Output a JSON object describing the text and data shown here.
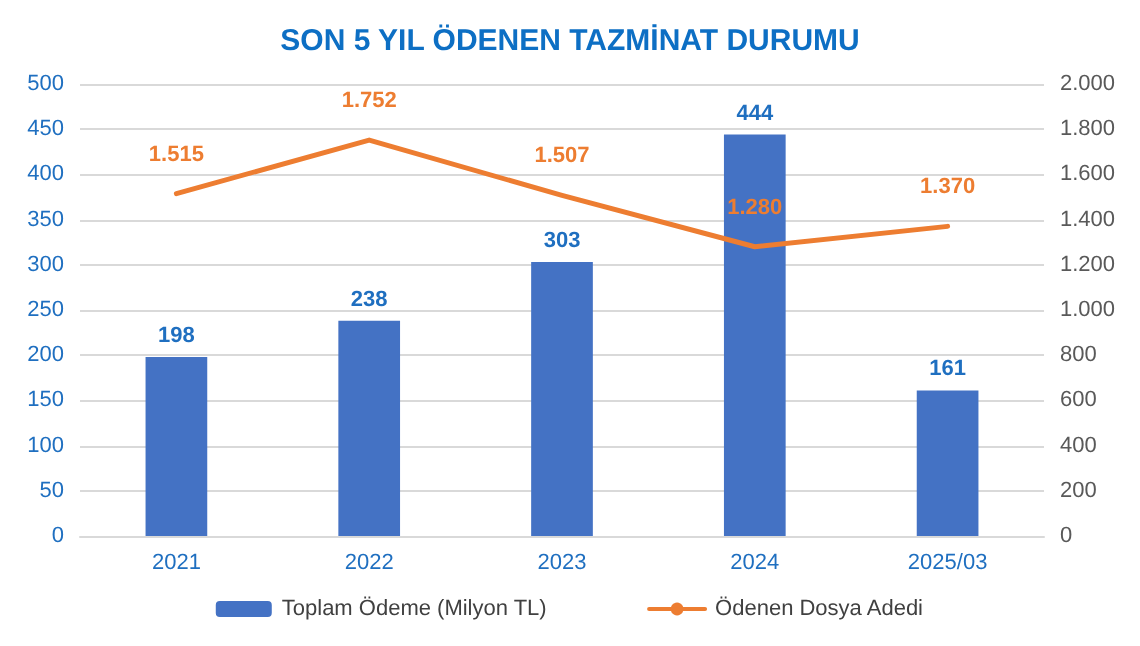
{
  "chart_data": {
    "type": "bar",
    "title": "SON 5 YIL ÖDENEN TAZMİNAT DURUMU",
    "categories": [
      "2021",
      "2022",
      "2023",
      "2024",
      "2025/03"
    ],
    "series": [
      {
        "name": "Toplam Ödeme (Milyon TL)",
        "color": "#4472c4",
        "values": [
          198,
          238,
          303,
          444,
          161
        ],
        "value_labels": [
          "198",
          "238",
          "303",
          "444",
          "161"
        ]
      },
      {
        "name": "Ödenen Dosya Adedi",
        "type": "line",
        "axis": "y2",
        "color": "#ed7d31",
        "values": [
          1515,
          1752,
          1507,
          1280,
          1370
        ],
        "value_labels": [
          "1.515",
          "1.752",
          "1.507",
          "1.280",
          "1.370"
        ]
      }
    ],
    "ylim": [
      0,
      500
    ],
    "yticks": [
      0,
      50,
      100,
      150,
      200,
      250,
      300,
      350,
      400,
      450,
      500
    ],
    "y2lim": [
      0,
      2000
    ],
    "y2ticks": [
      0,
      200,
      400,
      600,
      800,
      {
        "value": 1000,
        "label": "1.000"
      },
      {
        "value": 1200,
        "label": "1.200"
      },
      {
        "value": 1400,
        "label": "1.400"
      },
      {
        "value": 1600,
        "label": "1.600"
      },
      {
        "value": 1800,
        "label": "1.800"
      },
      {
        "value": 2000,
        "label": "2.000"
      }
    ],
    "grid": "y",
    "legend": "bottom",
    "marker": "none",
    "line_style": "solid"
  }
}
